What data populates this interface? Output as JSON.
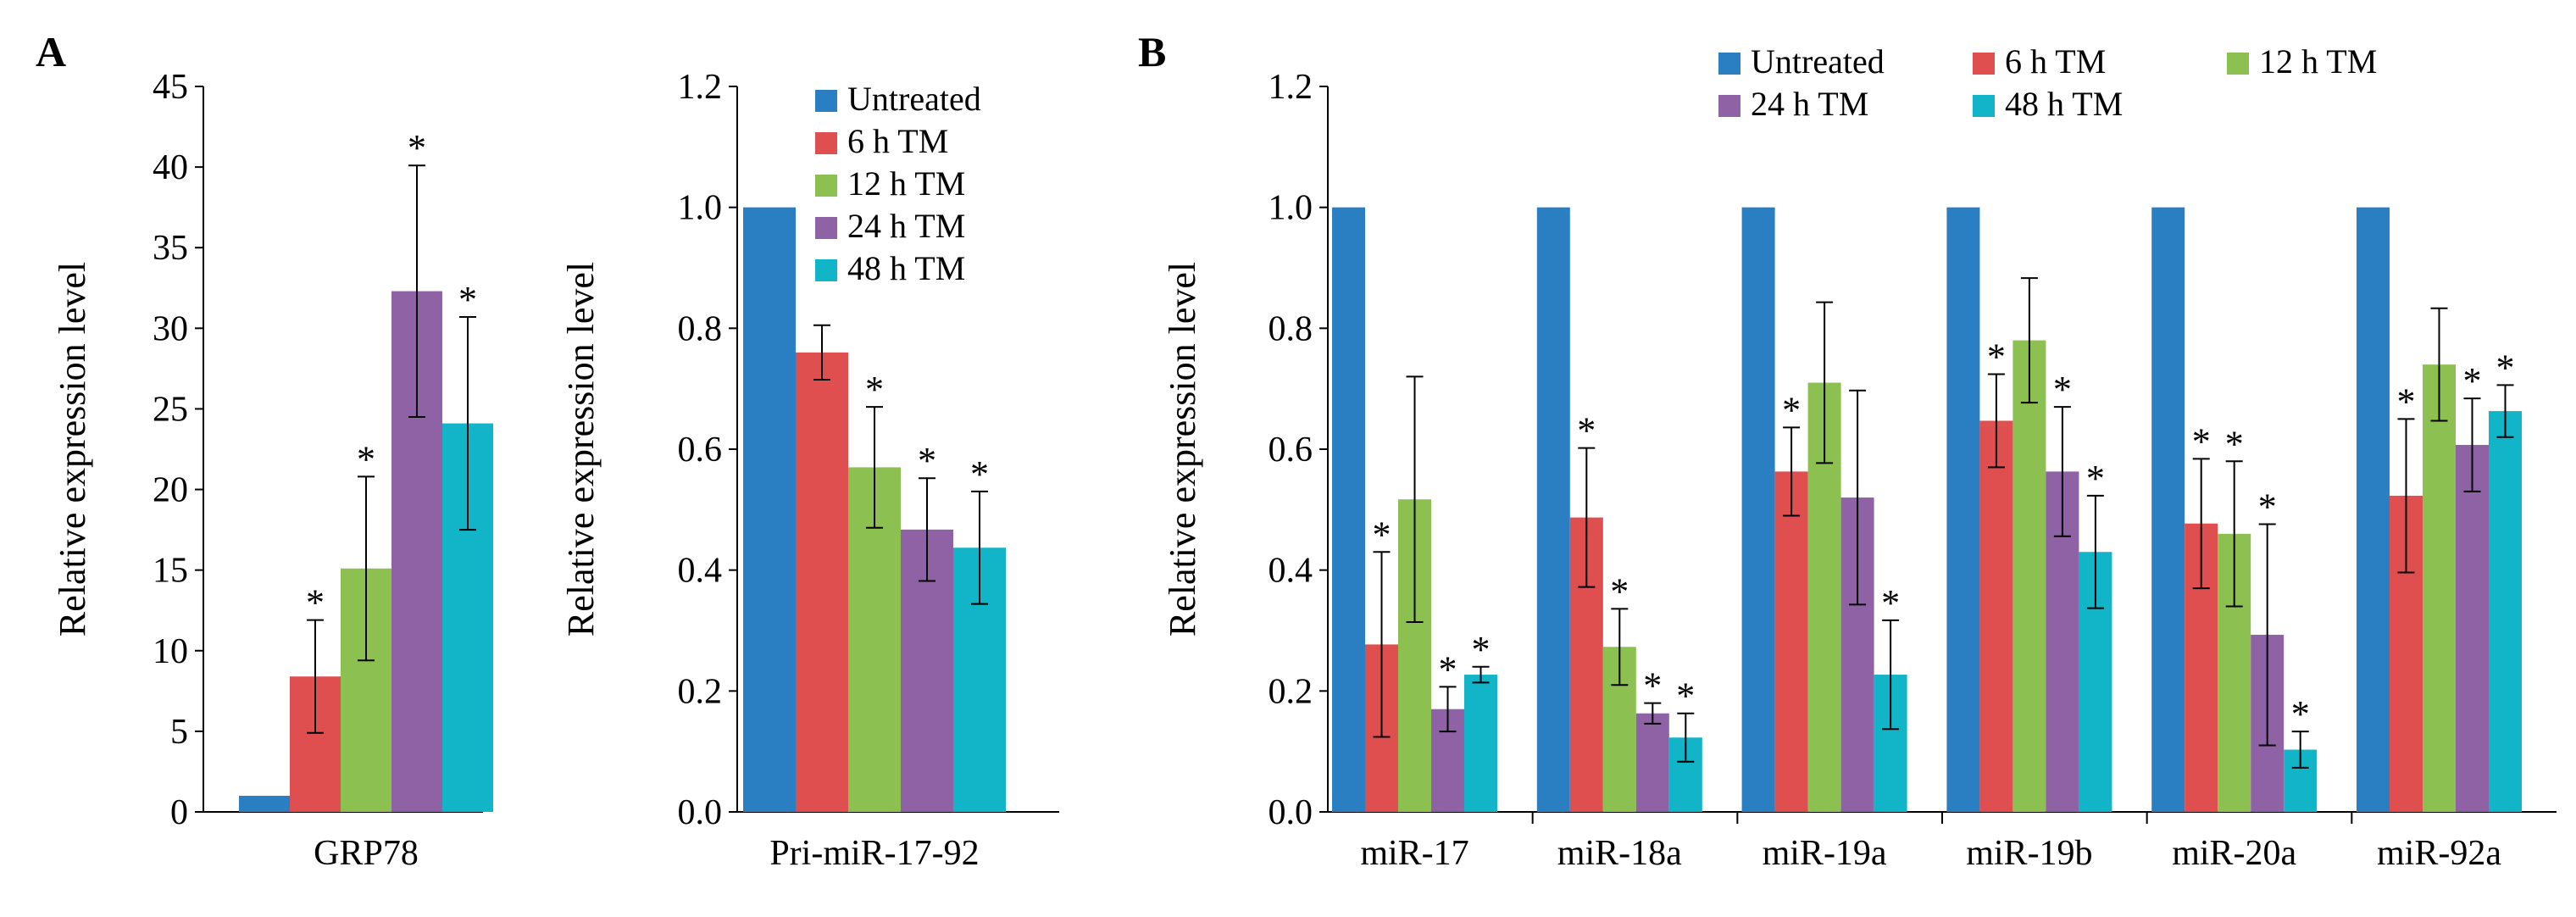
{
  "figure": {
    "panel_labels": [
      "A",
      "B"
    ]
  },
  "series_colors": {
    "Untreated": "#2a7fc2",
    "6 h TM": "#e04f4f",
    "12 h TM": "#8cc152",
    "24 h TM": "#8f62a6",
    "48 h TM": "#12b4c8"
  },
  "chart_data": [
    {
      "id": "grp78",
      "type": "bar",
      "title": "",
      "xlabel": "",
      "ylabel": "Relative expression level",
      "ylim": [
        0,
        45
      ],
      "yticks": [
        "0",
        "5",
        "10",
        "15",
        "20",
        "25",
        "30",
        "35",
        "40",
        "45"
      ],
      "categories": [
        "GRP78"
      ],
      "series": [
        {
          "name": "Untreated",
          "values": [
            1.0
          ],
          "errors": [
            0
          ],
          "significant": [
            false
          ]
        },
        {
          "name": "6 h TM",
          "values": [
            8.4
          ],
          "errors": [
            3.5
          ],
          "significant": [
            true
          ]
        },
        {
          "name": "12 h TM",
          "values": [
            15.1
          ],
          "errors": [
            5.7
          ],
          "significant": [
            true
          ]
        },
        {
          "name": "24 h TM",
          "values": [
            32.3
          ],
          "errors": [
            7.8
          ],
          "significant": [
            true
          ]
        },
        {
          "name": "48 h TM",
          "values": [
            24.1
          ],
          "errors": [
            6.6
          ],
          "significant": [
            true
          ]
        }
      ],
      "legend": false
    },
    {
      "id": "primir",
      "type": "bar",
      "title": "",
      "xlabel": "",
      "ylabel": "Relative expression level",
      "ylim": [
        0,
        1.2
      ],
      "yticks": [
        "0.0",
        "0.2",
        "0.4",
        "0.6",
        "0.8",
        "1.0",
        "1.2"
      ],
      "categories": [
        "Pri-miR-17-92"
      ],
      "series": [
        {
          "name": "Untreated",
          "values": [
            1.0
          ],
          "errors": [
            0
          ],
          "significant": [
            false
          ]
        },
        {
          "name": "6 h TM",
          "values": [
            0.76
          ],
          "errors": [
            0.045
          ],
          "significant": [
            false
          ]
        },
        {
          "name": "12 h TM",
          "values": [
            0.57
          ],
          "errors": [
            0.1
          ],
          "significant": [
            true
          ]
        },
        {
          "name": "24 h TM",
          "values": [
            0.467
          ],
          "errors": [
            0.085
          ],
          "significant": [
            true
          ]
        },
        {
          "name": "48 h TM",
          "values": [
            0.437
          ],
          "errors": [
            0.093
          ],
          "significant": [
            true
          ]
        }
      ],
      "legend": true,
      "legend_placement": "top-right"
    },
    {
      "id": "mirs",
      "type": "bar",
      "title": "",
      "xlabel": "",
      "ylabel": "Relative expression level",
      "ylim": [
        0,
        1.2
      ],
      "yticks": [
        "0.0",
        "0.2",
        "0.4",
        "0.6",
        "0.8",
        "1.0",
        "1.2"
      ],
      "categories": [
        "miR-17",
        "miR-18a",
        "miR-19a",
        "miR-19b",
        "miR-20a",
        "miR-92a"
      ],
      "series": [
        {
          "name": "Untreated",
          "values": [
            1.0,
            1.0,
            1.0,
            1.0,
            1.0,
            1.0
          ],
          "errors": [
            0,
            0,
            0,
            0,
            0,
            0
          ],
          "significant": [
            false,
            false,
            false,
            false,
            false,
            false
          ]
        },
        {
          "name": "6 h TM",
          "values": [
            0.277,
            0.487,
            0.563,
            0.647,
            0.477,
            0.523
          ],
          "errors": [
            0.153,
            0.115,
            0.073,
            0.077,
            0.107,
            0.127
          ],
          "significant": [
            true,
            true,
            true,
            true,
            true,
            true
          ]
        },
        {
          "name": "12 h TM",
          "values": [
            0.517,
            0.273,
            0.71,
            0.78,
            0.46,
            0.74
          ],
          "errors": [
            0.203,
            0.063,
            0.133,
            0.103,
            0.12,
            0.093
          ],
          "significant": [
            false,
            true,
            false,
            false,
            true,
            false
          ]
        },
        {
          "name": "24 h TM",
          "values": [
            0.17,
            0.163,
            0.52,
            0.563,
            0.293,
            0.607
          ],
          "errors": [
            0.037,
            0.017,
            0.177,
            0.107,
            0.183,
            0.077
          ],
          "significant": [
            true,
            true,
            false,
            true,
            true,
            true
          ]
        },
        {
          "name": "48 h TM",
          "values": [
            0.227,
            0.123,
            0.227,
            0.43,
            0.103,
            0.663
          ],
          "errors": [
            0.013,
            0.04,
            0.09,
            0.093,
            0.03,
            0.043
          ],
          "significant": [
            true,
            true,
            true,
            true,
            true,
            true
          ]
        }
      ],
      "legend": true,
      "legend_placement": "top-center"
    }
  ]
}
